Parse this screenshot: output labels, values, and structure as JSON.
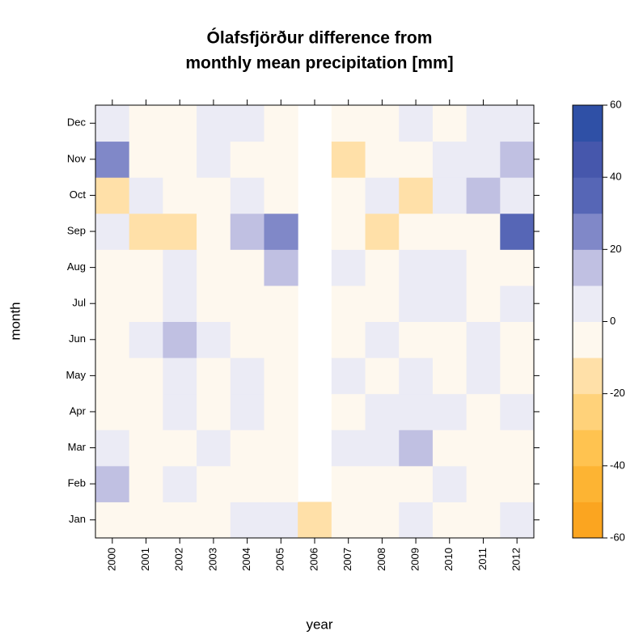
{
  "chart_data": {
    "type": "heatmap",
    "title": [
      "Ólafsfjörður difference from",
      "monthly mean precipitation [mm]"
    ],
    "x_label": "year",
    "y_label": "month",
    "x": [
      "2000",
      "2001",
      "2002",
      "2003",
      "2004",
      "2005",
      "2006",
      "2007",
      "2008",
      "2009",
      "2010",
      "2011",
      "2012"
    ],
    "y": [
      "Jan",
      "Feb",
      "Mar",
      "Apr",
      "May",
      "Jun",
      "Jul",
      "Aug",
      "Sep",
      "Oct",
      "Nov",
      "Dec"
    ],
    "z": [
      [
        -5,
        -5,
        -5,
        -5,
        5,
        5,
        -15,
        -5,
        -5,
        5,
        -5,
        -5,
        5
      ],
      [
        15,
        -5,
        5,
        -5,
        -5,
        -5,
        null,
        -5,
        -5,
        -5,
        5,
        -5,
        -5
      ],
      [
        5,
        -5,
        -5,
        5,
        -5,
        -5,
        null,
        5,
        5,
        15,
        -5,
        -5,
        -5
      ],
      [
        -5,
        -5,
        5,
        -5,
        5,
        -5,
        null,
        -5,
        5,
        5,
        5,
        -5,
        5
      ],
      [
        -5,
        -5,
        5,
        -5,
        5,
        -5,
        null,
        5,
        -5,
        5,
        -5,
        5,
        -5
      ],
      [
        -5,
        5,
        15,
        5,
        -5,
        -5,
        null,
        -5,
        5,
        -5,
        -5,
        5,
        -5
      ],
      [
        -5,
        -5,
        5,
        -5,
        -5,
        -5,
        null,
        -5,
        -5,
        5,
        5,
        -5,
        5
      ],
      [
        -5,
        -5,
        5,
        -5,
        -5,
        15,
        null,
        5,
        -5,
        5,
        5,
        -5,
        -5
      ],
      [
        5,
        -15,
        -15,
        -5,
        15,
        25,
        null,
        -5,
        -15,
        -5,
        -5,
        -5,
        35
      ],
      [
        -15,
        5,
        -5,
        -5,
        5,
        -5,
        null,
        -5,
        5,
        -15,
        5,
        15,
        5
      ],
      [
        25,
        -5,
        -5,
        5,
        -5,
        -5,
        null,
        -15,
        -5,
        -5,
        5,
        5,
        15
      ],
      [
        5,
        -5,
        -5,
        5,
        5,
        -5,
        null,
        -5,
        -5,
        5,
        -5,
        5,
        5
      ]
    ],
    "zlim": [
      -60,
      60
    ],
    "zticks": [
      -60,
      -40,
      -20,
      0,
      20,
      40,
      60
    ],
    "breaks": [
      -60,
      -50,
      -40,
      -30,
      -20,
      -10,
      0,
      10,
      20,
      30,
      40,
      50,
      60
    ],
    "colors": [
      "#FBA520",
      "#FDB433",
      "#FFC350",
      "#FFD27A",
      "#FFE0A8",
      "#FEF8EE",
      "#EBEBF5",
      "#C0C0E2",
      "#8088C8",
      "#5666B6",
      "#4657AC",
      "#2F50A6"
    ]
  }
}
